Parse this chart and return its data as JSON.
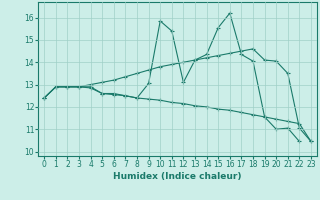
{
  "xlabel": "Humidex (Indice chaleur)",
  "bg_color": "#cceee8",
  "line_color": "#1a7a6a",
  "xlim": [
    -0.5,
    23.5
  ],
  "ylim": [
    9.8,
    16.7
  ],
  "yticks": [
    10,
    11,
    12,
    13,
    14,
    15,
    16
  ],
  "xticks": [
    0,
    1,
    2,
    3,
    4,
    5,
    6,
    7,
    8,
    9,
    10,
    11,
    12,
    13,
    14,
    15,
    16,
    17,
    18,
    19,
    20,
    21,
    22,
    23
  ],
  "series1_x": [
    0,
    1,
    2,
    3,
    4,
    5,
    6,
    7,
    8,
    9,
    10,
    11,
    12,
    13,
    14,
    15,
    16,
    17,
    18,
    19,
    20,
    21,
    22
  ],
  "series1_y": [
    12.4,
    12.9,
    12.9,
    12.9,
    12.9,
    12.6,
    12.6,
    12.5,
    12.4,
    13.05,
    15.85,
    15.4,
    13.1,
    14.1,
    14.35,
    15.55,
    16.2,
    14.35,
    14.05,
    11.55,
    11.0,
    11.05,
    10.45
  ],
  "series2_x": [
    0,
    1,
    2,
    3,
    4,
    5,
    6,
    7,
    8,
    9,
    10,
    11,
    12,
    13,
    14,
    15,
    16,
    17,
    18,
    19,
    20,
    21,
    22,
    23
  ],
  "series2_y": [
    12.4,
    12.9,
    12.9,
    12.9,
    12.85,
    12.6,
    12.55,
    12.5,
    12.4,
    12.35,
    12.3,
    12.2,
    12.15,
    12.05,
    12.0,
    11.9,
    11.85,
    11.75,
    11.65,
    11.55,
    11.45,
    11.35,
    11.25,
    10.45
  ],
  "series3_x": [
    0,
    1,
    2,
    3,
    4,
    5,
    6,
    7,
    8,
    9,
    10,
    11,
    12,
    13,
    14,
    15,
    16,
    17,
    18,
    19,
    20,
    21,
    22,
    23
  ],
  "series3_y": [
    12.4,
    12.9,
    12.9,
    12.9,
    13.0,
    13.1,
    13.2,
    13.35,
    13.5,
    13.65,
    13.8,
    13.9,
    14.0,
    14.1,
    14.2,
    14.3,
    14.4,
    14.5,
    14.6,
    14.1,
    14.05,
    13.5,
    11.05,
    10.45
  ],
  "xlabel_fontsize": 6.5,
  "tick_fontsize": 5.5,
  "lw": 0.8,
  "ms": 3.0,
  "mew": 0.8
}
